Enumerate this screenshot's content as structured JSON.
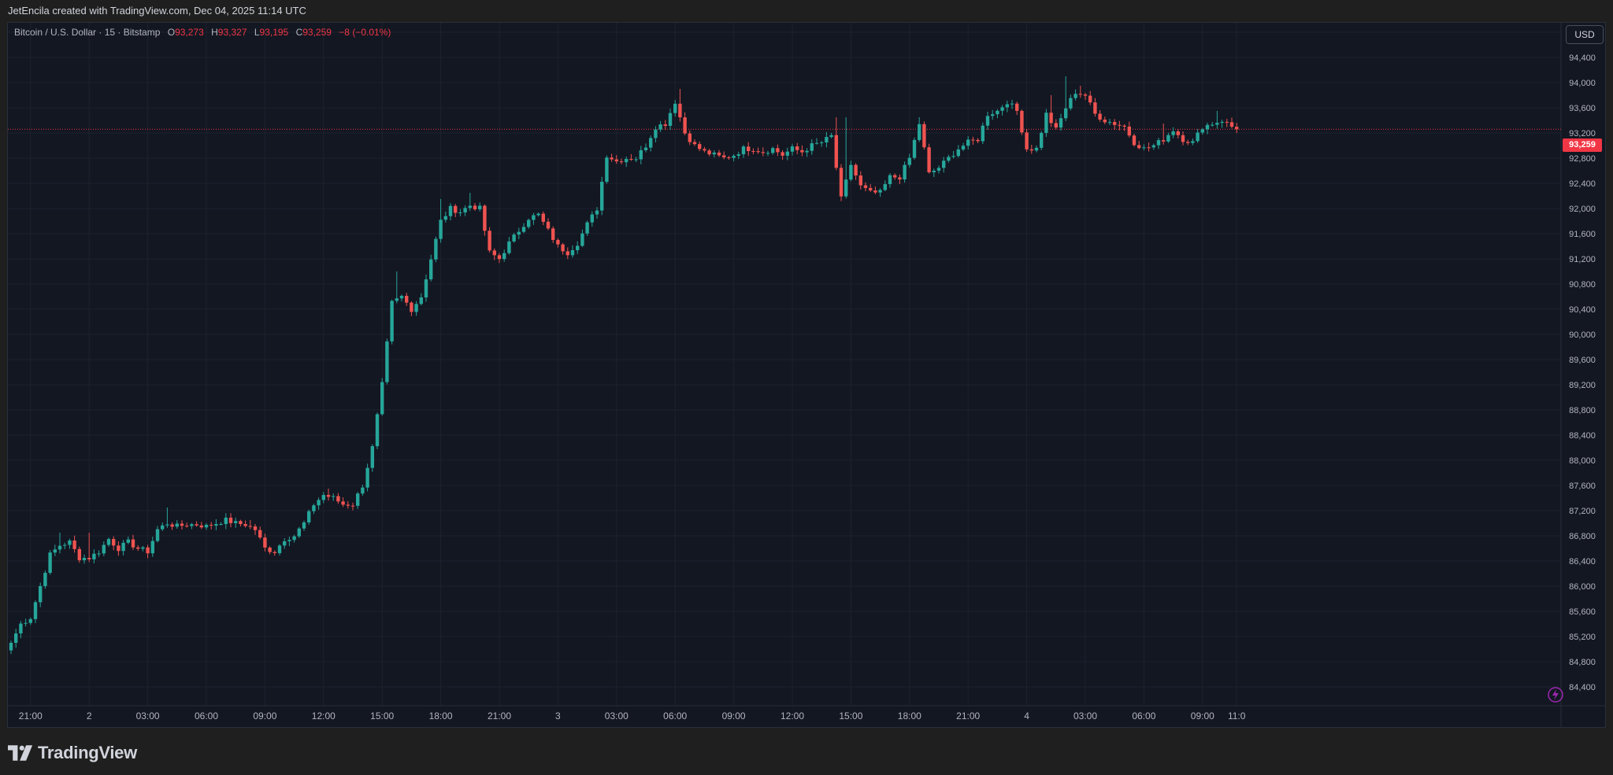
{
  "header": {
    "attribution": "JetEncila created with TradingView.com, Dec 04, 2025 11:14 UTC"
  },
  "legend": {
    "symbol": "Bitcoin / U.S. Dollar · 15 · Bitstamp",
    "o_label": "O",
    "o_value": "93,273",
    "h_label": "H",
    "h_value": "93,327",
    "l_label": "L",
    "l_value": "93,195",
    "c_label": "C",
    "c_value": "93,259",
    "change": "−8 (−0.01%)"
  },
  "currency_button": "USD",
  "last_price_label": "93,259",
  "brand": {
    "name": "TradingView"
  },
  "icons": {
    "logo": "tradingview-logo-icon",
    "bolt": "lightning-icon"
  },
  "colors": {
    "up": "#26a69a",
    "down": "#ef5350",
    "background": "#131722",
    "last_price": "#f23645"
  },
  "chart_data": {
    "type": "candlestick",
    "symbol": "Bitcoin / U.S. Dollar",
    "interval": "15",
    "exchange": "Bitstamp",
    "ylim": [
      84100,
      94950
    ],
    "y_ticks": [
      84400,
      84800,
      85200,
      85600,
      86000,
      86400,
      86800,
      87200,
      87600,
      88000,
      88400,
      88800,
      89200,
      89600,
      90000,
      90400,
      90800,
      91200,
      91600,
      92000,
      92400,
      92800,
      93200,
      93600,
      94000,
      94400,
      94800
    ],
    "y_tick_labels": [
      "84,400",
      "84,800",
      "85,200",
      "85,600",
      "86,000",
      "86,400",
      "86,800",
      "87,200",
      "87,600",
      "88,000",
      "88,400",
      "88,800",
      "89,200",
      "89,600",
      "90,000",
      "90,400",
      "90,800",
      "91,200",
      "91,600",
      "92,000",
      "92,400",
      "92,800",
      "93,200",
      "93,600",
      "94,000",
      "94,400",
      "94,800"
    ],
    "x_ticks": [
      {
        "label": "21:00",
        "bar": 4
      },
      {
        "label": "2",
        "bar": 16
      },
      {
        "label": "03:00",
        "bar": 28
      },
      {
        "label": "06:00",
        "bar": 40
      },
      {
        "label": "09:00",
        "bar": 52
      },
      {
        "label": "12:00",
        "bar": 64
      },
      {
        "label": "15:00",
        "bar": 76
      },
      {
        "label": "18:00",
        "bar": 88
      },
      {
        "label": "21:00",
        "bar": 100
      },
      {
        "label": "3",
        "bar": 112
      },
      {
        "label": "03:00",
        "bar": 124
      },
      {
        "label": "06:00",
        "bar": 136
      },
      {
        "label": "09:00",
        "bar": 148
      },
      {
        "label": "12:00",
        "bar": 160
      },
      {
        "label": "15:00",
        "bar": 172
      },
      {
        "label": "18:00",
        "bar": 184
      },
      {
        "label": "21:00",
        "bar": 196
      },
      {
        "label": "4",
        "bar": 208
      },
      {
        "label": "03:00",
        "bar": 220
      },
      {
        "label": "06:00",
        "bar": 232
      },
      {
        "label": "09:00",
        "bar": 244
      },
      {
        "label": "11:0",
        "bar": 251
      }
    ],
    "last_price": 93259,
    "series": [
      {
        "name": "BTC/USD",
        "anchors": [
          [
            0,
            85100
          ],
          [
            2,
            85400
          ],
          [
            4,
            85500
          ],
          [
            6,
            86000
          ],
          [
            8,
            86500
          ],
          [
            10,
            86650
          ],
          [
            12,
            86700
          ],
          [
            14,
            86450
          ],
          [
            16,
            86450
          ],
          [
            18,
            86550
          ],
          [
            20,
            86750
          ],
          [
            22,
            86600
          ],
          [
            24,
            86700
          ],
          [
            26,
            86600
          ],
          [
            28,
            86550
          ],
          [
            30,
            86900
          ],
          [
            32,
            87000
          ],
          [
            34,
            86950
          ],
          [
            36,
            86980
          ],
          [
            38,
            86980
          ],
          [
            40,
            86950
          ],
          [
            42,
            87000
          ],
          [
            44,
            87050
          ],
          [
            46,
            87000
          ],
          [
            48,
            86980
          ],
          [
            50,
            86900
          ],
          [
            52,
            86600
          ],
          [
            54,
            86550
          ],
          [
            56,
            86750
          ],
          [
            58,
            86800
          ],
          [
            60,
            87000
          ],
          [
            62,
            87300
          ],
          [
            64,
            87450
          ],
          [
            66,
            87400
          ],
          [
            68,
            87300
          ],
          [
            70,
            87300
          ],
          [
            72,
            87600
          ],
          [
            74,
            88200
          ],
          [
            76,
            89200
          ],
          [
            78,
            90500
          ],
          [
            80,
            90600
          ],
          [
            82,
            90400
          ],
          [
            84,
            90600
          ],
          [
            86,
            91200
          ],
          [
            88,
            91800
          ],
          [
            90,
            92000
          ],
          [
            92,
            91950
          ],
          [
            94,
            92050
          ],
          [
            96,
            92000
          ],
          [
            98,
            91300
          ],
          [
            100,
            91200
          ],
          [
            102,
            91450
          ],
          [
            104,
            91650
          ],
          [
            106,
            91850
          ],
          [
            108,
            91900
          ],
          [
            110,
            91650
          ],
          [
            112,
            91400
          ],
          [
            114,
            91300
          ],
          [
            116,
            91450
          ],
          [
            118,
            91750
          ],
          [
            120,
            92000
          ],
          [
            122,
            92850
          ],
          [
            124,
            92750
          ],
          [
            126,
            92800
          ],
          [
            128,
            92800
          ],
          [
            130,
            93000
          ],
          [
            132,
            93300
          ],
          [
            134,
            93350
          ],
          [
            136,
            93700
          ],
          [
            138,
            93200
          ],
          [
            140,
            93000
          ],
          [
            142,
            92900
          ],
          [
            144,
            92850
          ],
          [
            146,
            92800
          ],
          [
            148,
            92850
          ],
          [
            150,
            92950
          ],
          [
            152,
            92950
          ],
          [
            154,
            92900
          ],
          [
            156,
            92950
          ],
          [
            158,
            92850
          ],
          [
            160,
            92950
          ],
          [
            162,
            92900
          ],
          [
            164,
            93000
          ],
          [
            166,
            93050
          ],
          [
            168,
            93150
          ],
          [
            170,
            92150
          ],
          [
            172,
            92700
          ],
          [
            174,
            92350
          ],
          [
            176,
            92250
          ],
          [
            178,
            92250
          ],
          [
            180,
            92500
          ],
          [
            182,
            92500
          ],
          [
            184,
            92800
          ],
          [
            186,
            93350
          ],
          [
            188,
            92550
          ],
          [
            190,
            92650
          ],
          [
            192,
            92800
          ],
          [
            194,
            92950
          ],
          [
            196,
            93050
          ],
          [
            198,
            93100
          ],
          [
            200,
            93500
          ],
          [
            202,
            93550
          ],
          [
            204,
            93700
          ],
          [
            206,
            93550
          ],
          [
            208,
            92950
          ],
          [
            210,
            92950
          ],
          [
            212,
            93500
          ],
          [
            214,
            93250
          ],
          [
            216,
            93600
          ],
          [
            218,
            93850
          ],
          [
            220,
            93800
          ],
          [
            222,
            93500
          ],
          [
            224,
            93400
          ],
          [
            226,
            93350
          ],
          [
            228,
            93300
          ],
          [
            230,
            93050
          ],
          [
            232,
            92950
          ],
          [
            234,
            93000
          ],
          [
            236,
            93100
          ],
          [
            238,
            93250
          ],
          [
            240,
            93100
          ],
          [
            242,
            93050
          ],
          [
            244,
            93300
          ],
          [
            246,
            93350
          ],
          [
            248,
            93400
          ],
          [
            250,
            93300
          ],
          [
            251,
            93259
          ]
        ],
        "notable_wicks": [
          [
            10,
            86850
          ],
          [
            16,
            86850
          ],
          [
            32,
            87250
          ],
          [
            49,
            87050
          ],
          [
            65,
            87550
          ],
          [
            79,
            91000
          ],
          [
            88,
            92150
          ],
          [
            94,
            92250
          ],
          [
            137,
            93900
          ],
          [
            169,
            93450
          ],
          [
            171,
            93450
          ],
          [
            186,
            93450
          ],
          [
            213,
            93800
          ],
          [
            216,
            94100
          ],
          [
            219,
            93950
          ],
          [
            236,
            93350
          ],
          [
            247,
            93550
          ]
        ]
      }
    ]
  }
}
